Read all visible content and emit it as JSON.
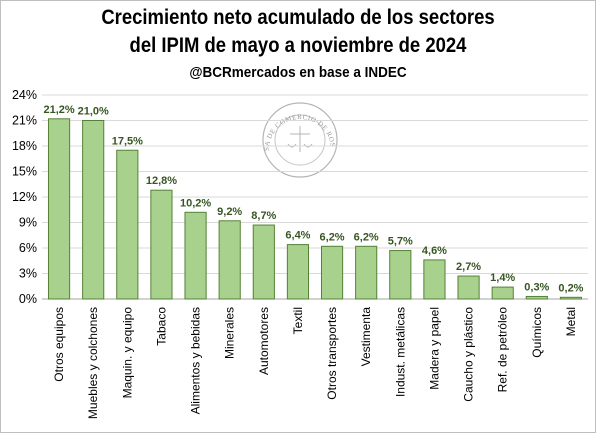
{
  "chart_data": {
    "type": "bar",
    "title": "Crecimiento neto acumulado de los sectores",
    "subtitle": "del IPIM de mayo a noviembre de 2024",
    "source": "@BCRmercados en base a INDEC",
    "categories": [
      "Otros equipos",
      "Muebles y colchones",
      "Maquin. y equipo",
      "Tabaco",
      "Alimentos y bebidas",
      "Minerales",
      "Automotores",
      "Textil",
      "Otros transportes",
      "Vestimenta",
      "Indust. metálicas",
      "Madera y papel",
      "Caucho y plástico",
      "Ref. de petróleo",
      "Químicos",
      "Metal"
    ],
    "values": [
      21.2,
      21.0,
      17.5,
      12.8,
      10.2,
      9.2,
      8.7,
      6.4,
      6.2,
      6.2,
      5.7,
      4.6,
      2.7,
      1.4,
      0.3,
      0.2
    ],
    "data_labels": [
      "21,2%",
      "21,0%",
      "17,5%",
      "12,8%",
      "10,2%",
      "9,2%",
      "8,7%",
      "6,4%",
      "6,2%",
      "6,2%",
      "5,7%",
      "4,6%",
      "2,7%",
      "1,4%",
      "0,3%",
      "0,2%"
    ],
    "y_ticks": [
      0,
      3,
      6,
      9,
      12,
      15,
      18,
      21,
      24
    ],
    "y_tick_labels": [
      "0%",
      "3%",
      "6%",
      "9%",
      "12%",
      "15%",
      "18%",
      "21%",
      "24%"
    ],
    "ylim": [
      0,
      24
    ],
    "xlabel": "",
    "ylabel": "",
    "grid": true,
    "colors": {
      "bar_fill": "#a9d18e",
      "bar_stroke": "#548235",
      "label": "#375623",
      "grid": "#d9d9d9"
    },
    "watermark": {
      "text": "BOLSA DE COMERCIO DE ROSARIO"
    }
  }
}
